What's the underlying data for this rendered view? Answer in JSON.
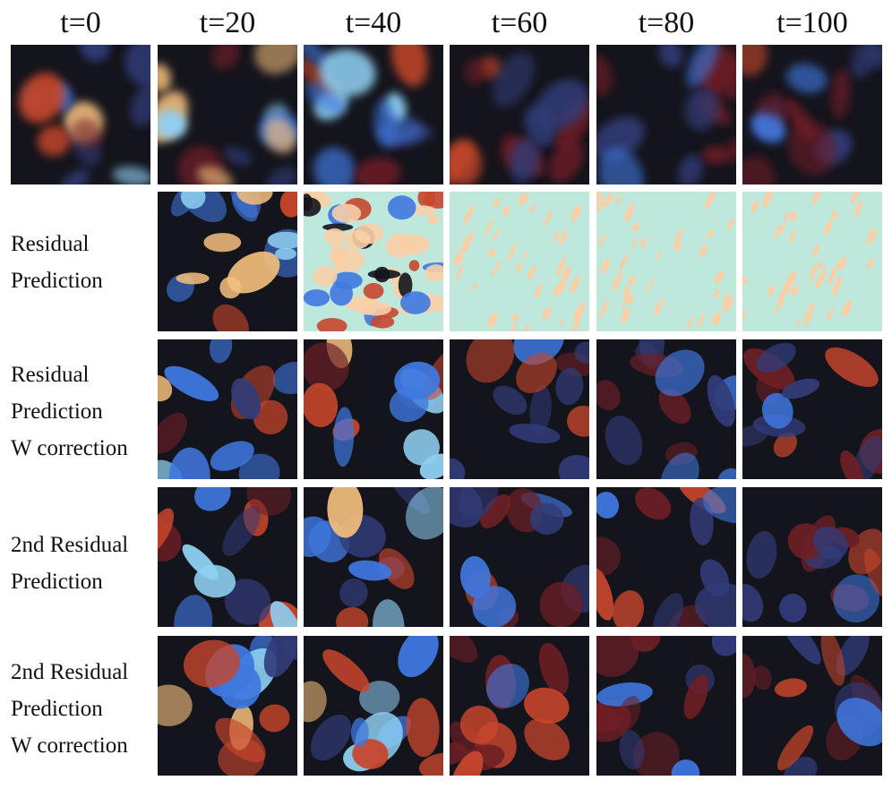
{
  "columns": [
    "t=0",
    "t=20",
    "t=40",
    "t=60",
    "t=80",
    "t=100"
  ],
  "rows": [
    {
      "label_lines": []
    },
    {
      "label_lines": [
        "Residual",
        "Prediction"
      ]
    },
    {
      "label_lines": [
        "Residual",
        "Prediction",
        "W correction"
      ]
    },
    {
      "label_lines": [
        "2nd Residual",
        "Prediction"
      ]
    },
    {
      "label_lines": [
        "2nd Residual",
        "Prediction",
        "W correction"
      ]
    }
  ],
  "colors": {
    "background_dark": "#14141c",
    "positive_strong": "#f6c07e",
    "positive": "#c8462c",
    "positive_dim": "#6e1f25",
    "negative": "#3f78e0",
    "negative_strong": "#8fd0f2",
    "negative_dim": "#323c7a",
    "diverged_bg": "#bfe8dc",
    "diverged_spot": "#f8cfa7"
  }
}
